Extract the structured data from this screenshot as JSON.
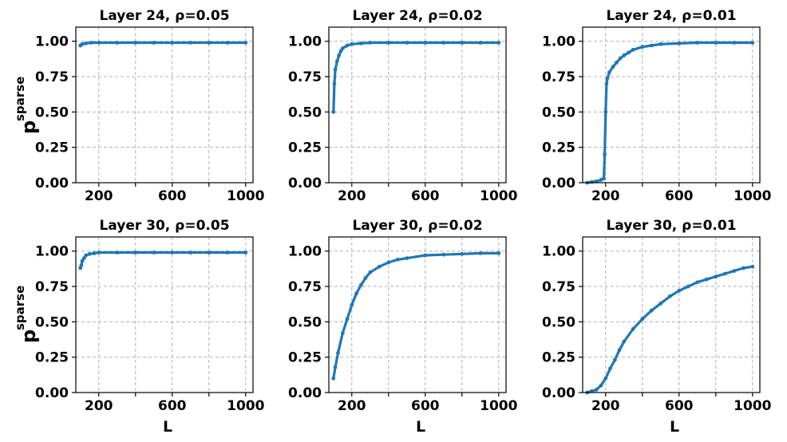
{
  "figure": {
    "ylabel_main": "p",
    "ylabel_sub": "sparse",
    "xlabel": "L",
    "series_color": "#1f77b4"
  },
  "chart_data": [
    {
      "type": "line",
      "title": "Layer 24, ρ=0.05",
      "xlim": [
        75,
        1040
      ],
      "ylim": [
        0,
        1.1
      ],
      "xticks": [
        200,
        600,
        1000
      ],
      "yticks": [
        "0.00",
        "0.25",
        "0.50",
        "0.75",
        "1.00"
      ],
      "grid": true,
      "x": [
        100,
        110,
        130,
        160,
        200,
        300,
        400,
        500,
        600,
        700,
        800,
        900,
        1000
      ],
      "y": [
        0.97,
        0.98,
        0.985,
        0.99,
        0.99,
        0.99,
        0.99,
        0.99,
        0.99,
        0.99,
        0.99,
        0.99,
        0.99
      ]
    },
    {
      "type": "line",
      "title": "Layer 24, ρ=0.02",
      "xlim": [
        75,
        1040
      ],
      "ylim": [
        0,
        1.1
      ],
      "xticks": [
        200,
        600,
        1000
      ],
      "yticks": [
        "0.00",
        "0.25",
        "0.50",
        "0.75",
        "1.00"
      ],
      "grid": true,
      "x": [
        100,
        105,
        110,
        120,
        130,
        140,
        150,
        175,
        200,
        250,
        300,
        400,
        500,
        600,
        700,
        800,
        900,
        1000
      ],
      "y": [
        0.5,
        0.7,
        0.8,
        0.86,
        0.9,
        0.93,
        0.95,
        0.97,
        0.98,
        0.985,
        0.99,
        0.99,
        0.99,
        0.99,
        0.99,
        0.99,
        0.99,
        0.99
      ]
    },
    {
      "type": "line",
      "title": "Layer 24, ρ=0.01",
      "xlim": [
        75,
        1040
      ],
      "ylim": [
        0,
        1.1
      ],
      "xticks": [
        200,
        600,
        1000
      ],
      "yticks": [
        "0.00",
        "0.25",
        "0.50",
        "0.75",
        "1.00"
      ],
      "grid": true,
      "x": [
        100,
        125,
        150,
        175,
        190,
        195,
        200,
        205,
        210,
        220,
        240,
        260,
        280,
        300,
        325,
        350,
        400,
        450,
        500,
        600,
        700,
        800,
        900,
        1000
      ],
      "y": [
        0.0,
        0.005,
        0.01,
        0.02,
        0.03,
        0.2,
        0.5,
        0.7,
        0.74,
        0.78,
        0.82,
        0.85,
        0.88,
        0.9,
        0.92,
        0.94,
        0.96,
        0.97,
        0.98,
        0.985,
        0.99,
        0.99,
        0.99,
        0.99
      ]
    },
    {
      "type": "line",
      "title": "Layer 30, ρ=0.05",
      "xlim": [
        75,
        1040
      ],
      "ylim": [
        0,
        1.1
      ],
      "xticks": [
        200,
        600,
        1000
      ],
      "yticks": [
        "0.00",
        "0.25",
        "0.50",
        "0.75",
        "1.00"
      ],
      "grid": true,
      "x": [
        100,
        105,
        110,
        120,
        130,
        150,
        175,
        200,
        300,
        400,
        500,
        600,
        700,
        800,
        900,
        1000
      ],
      "y": [
        0.88,
        0.9,
        0.93,
        0.95,
        0.97,
        0.98,
        0.985,
        0.99,
        0.99,
        0.99,
        0.99,
        0.99,
        0.99,
        0.99,
        0.99,
        0.99
      ]
    },
    {
      "type": "line",
      "title": "Layer 30, ρ=0.02",
      "xlim": [
        75,
        1040
      ],
      "ylim": [
        0,
        1.1
      ],
      "xticks": [
        200,
        600,
        1000
      ],
      "yticks": [
        "0.00",
        "0.25",
        "0.50",
        "0.75",
        "1.00"
      ],
      "grid": true,
      "x": [
        100,
        110,
        125,
        150,
        175,
        200,
        225,
        250,
        275,
        300,
        350,
        400,
        450,
        500,
        600,
        700,
        800,
        900,
        1000
      ],
      "y": [
        0.1,
        0.18,
        0.28,
        0.42,
        0.52,
        0.62,
        0.7,
        0.76,
        0.81,
        0.85,
        0.89,
        0.92,
        0.94,
        0.95,
        0.97,
        0.975,
        0.98,
        0.985,
        0.985
      ]
    },
    {
      "type": "line",
      "title": "Layer 30, ρ=0.01",
      "xlim": [
        75,
        1040
      ],
      "ylim": [
        0,
        1.1
      ],
      "xticks": [
        200,
        600,
        1000
      ],
      "yticks": [
        "0.00",
        "0.25",
        "0.50",
        "0.75",
        "1.00"
      ],
      "grid": true,
      "x": [
        100,
        125,
        150,
        175,
        200,
        225,
        250,
        275,
        300,
        350,
        400,
        450,
        500,
        550,
        600,
        650,
        700,
        750,
        800,
        850,
        900,
        950,
        1000
      ],
      "y": [
        0.0,
        0.01,
        0.02,
        0.05,
        0.1,
        0.17,
        0.23,
        0.3,
        0.36,
        0.45,
        0.52,
        0.58,
        0.63,
        0.68,
        0.72,
        0.75,
        0.78,
        0.8,
        0.82,
        0.84,
        0.86,
        0.88,
        0.89
      ]
    }
  ]
}
